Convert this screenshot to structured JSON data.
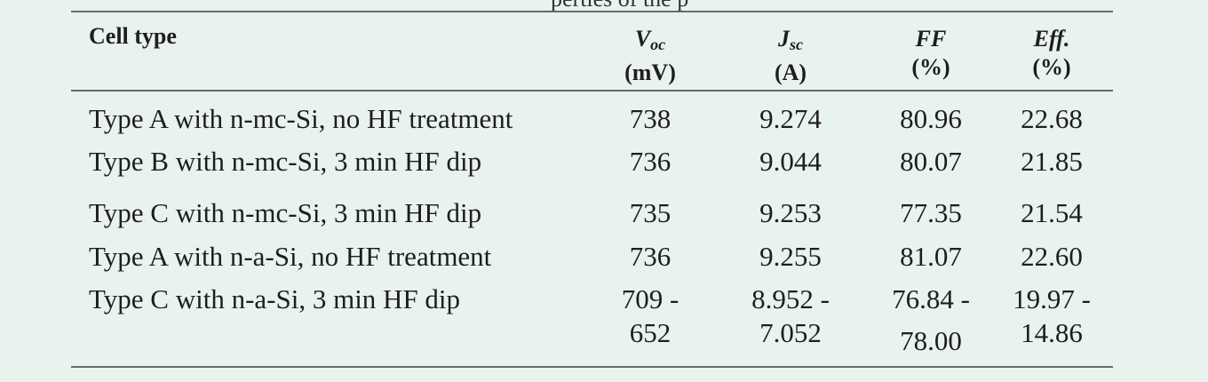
{
  "cut_off_text": "perties of the p",
  "headers": {
    "cell_type": "Cell type",
    "voc": {
      "symbol": "V",
      "sub": "oc",
      "unit": "(mV)"
    },
    "jsc": {
      "symbol": "J",
      "sub": "sc",
      "unit": "(A)"
    },
    "ff": {
      "symbol": "FF",
      "unit": "(%)"
    },
    "eff": {
      "symbol": "Eff.",
      "unit": "(%)"
    }
  },
  "rows": [
    {
      "label": "Type A with n-mc-Si, no HF treatment",
      "voc": "738",
      "jsc": "9.274",
      "ff": "80.96",
      "eff": "22.68"
    },
    {
      "label": "Type B with n-mc-Si, 3 min HF dip",
      "voc": "736",
      "jsc": "9.044",
      "ff": "80.07",
      "eff": "21.85"
    },
    {
      "label": "Type C with n-mc-Si, 3 min HF dip",
      "voc": "735",
      "jsc": "9.253",
      "ff": "77.35",
      "eff": "21.54"
    },
    {
      "label": "Type A with n-a-Si, no HF treatment",
      "voc": "736",
      "jsc": "9.255",
      "ff": "81.07",
      "eff": "22.60"
    },
    {
      "label": "Type C with n-a-Si, 3 min HF dip",
      "voc": "709 -",
      "voc2": "652",
      "jsc": "8.952 -",
      "jsc2": "7.052",
      "ff": "76.84 -",
      "ff2": "78.00",
      "eff": "19.97 -",
      "eff2": "14.86"
    }
  ]
}
